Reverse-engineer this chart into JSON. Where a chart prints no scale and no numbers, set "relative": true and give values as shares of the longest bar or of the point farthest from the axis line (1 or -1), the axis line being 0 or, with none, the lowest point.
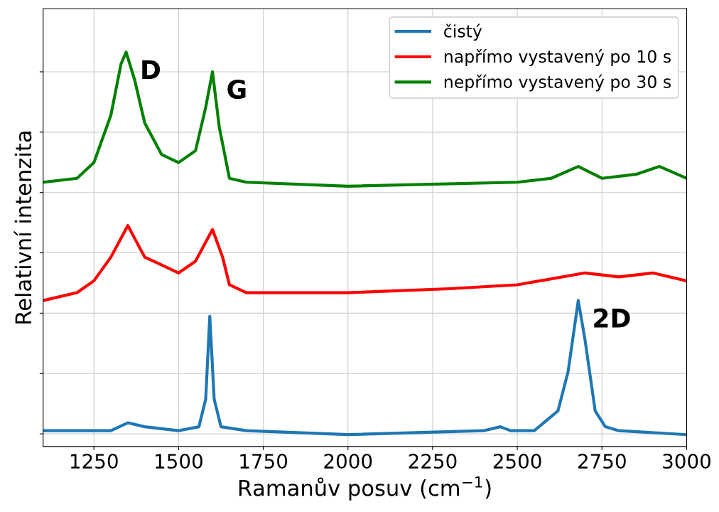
{
  "chart_data": {
    "type": "line",
    "relative": true,
    "xlabel": "Ramanův posuv (cm$^{−1}$)",
    "ylabel": "Relativní intenzita",
    "xlim": [
      1100,
      3000
    ],
    "xticks": [
      1250,
      1500,
      1750,
      2000,
      2250,
      2500,
      2750,
      3000
    ],
    "grid": true,
    "legend": "top right",
    "line_style": "solid",
    "tick_labels": "x",
    "annotations": [
      {
        "text": "D",
        "x": 1345,
        "y": 1.0
      },
      {
        "text": "G",
        "x": 1600,
        "y": 0.95
      },
      {
        "text": "2D",
        "x": 2680,
        "y": 0.37
      }
    ],
    "series": [
      {
        "name": "čistý",
        "color": "#1f77b4",
        "x": [
          1100,
          1300,
          1350,
          1400,
          1500,
          1560,
          1580,
          1592,
          1605,
          1625,
          1700,
          2000,
          2400,
          2450,
          2480,
          2550,
          2620,
          2650,
          2680,
          2700,
          2730,
          2760,
          2800,
          3000
        ],
        "values": [
          0.04,
          0.04,
          0.06,
          0.05,
          0.04,
          0.05,
          0.12,
          0.33,
          0.12,
          0.05,
          0.04,
          0.03,
          0.04,
          0.05,
          0.04,
          0.04,
          0.09,
          0.19,
          0.37,
          0.27,
          0.09,
          0.05,
          0.04,
          0.03
        ]
      },
      {
        "name": "napřímo vystavený po 10 s",
        "color": "#ff0000",
        "x": [
          1100,
          1200,
          1250,
          1300,
          1350,
          1400,
          1450,
          1500,
          1550,
          1600,
          1630,
          1650,
          1700,
          2000,
          2300,
          2500,
          2700,
          2800,
          2900,
          3000
        ],
        "values": [
          0.37,
          0.39,
          0.42,
          0.48,
          0.56,
          0.48,
          0.46,
          0.44,
          0.47,
          0.55,
          0.48,
          0.41,
          0.39,
          0.39,
          0.4,
          0.41,
          0.44,
          0.43,
          0.44,
          0.42
        ]
      },
      {
        "name": "nepřímo vystavený po 30 s",
        "color": "#008000",
        "x": [
          1100,
          1200,
          1250,
          1300,
          1330,
          1345,
          1370,
          1400,
          1450,
          1500,
          1550,
          1580,
          1600,
          1620,
          1650,
          1700,
          2000,
          2500,
          2600,
          2680,
          2750,
          2850,
          2920,
          3000
        ],
        "values": [
          0.67,
          0.68,
          0.72,
          0.84,
          0.97,
          1.0,
          0.93,
          0.82,
          0.74,
          0.72,
          0.75,
          0.86,
          0.95,
          0.81,
          0.68,
          0.67,
          0.66,
          0.67,
          0.68,
          0.71,
          0.68,
          0.69,
          0.71,
          0.68
        ]
      }
    ]
  }
}
